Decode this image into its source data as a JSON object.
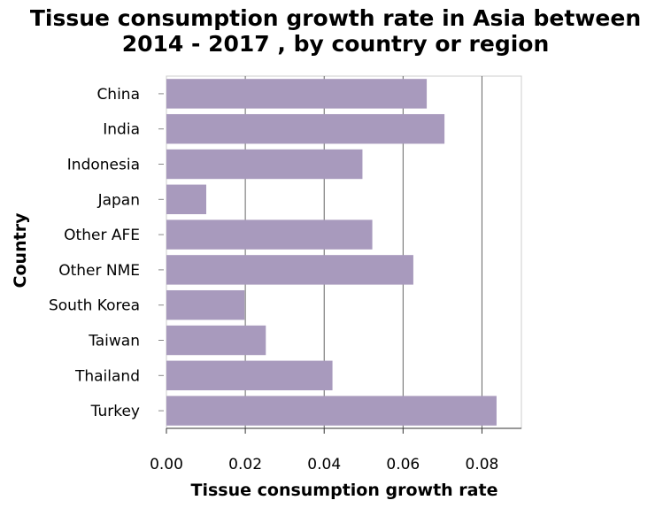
{
  "chart_data": {
    "type": "bar",
    "orientation": "horizontal",
    "title_lines": [
      "Tissue consumption growth rate in Asia between",
      "2014 - 2017 , by country or region"
    ],
    "xlabel": "Tissue consumption growth rate",
    "ylabel": "Country",
    "categories": [
      "China",
      "India",
      "Indonesia",
      "Japan",
      "Other AFE",
      "Other NME",
      "South Korea",
      "Taiwan",
      "Thailand",
      "Turkey"
    ],
    "values": [
      0.066,
      0.0705,
      0.0497,
      0.0101,
      0.0522,
      0.0626,
      0.0198,
      0.0252,
      0.0421,
      0.0837
    ],
    "xlim": [
      0,
      0.09
    ],
    "xticks": [
      0,
      0.02,
      0.04,
      0.06,
      0.08
    ],
    "xtick_labels": [
      "0.00",
      "0.02",
      "0.04",
      "0.06",
      "0.08"
    ],
    "grid": "vertical",
    "bar_color": "#a89abd",
    "grid_color": "#666666",
    "border_color": "#cccccc"
  }
}
